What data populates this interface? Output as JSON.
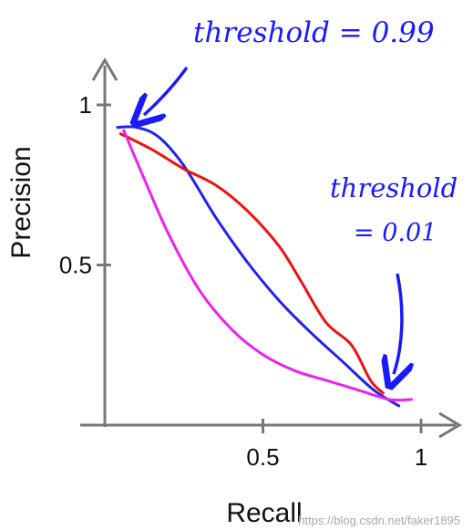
{
  "chart_data": {
    "type": "line",
    "title": "",
    "xlabel": "Recall",
    "ylabel": "Precision",
    "xlim": [
      0,
      1.1
    ],
    "ylim": [
      0,
      1.1
    ],
    "x_ticks": [
      {
        "value": 0.5,
        "label": "0.5"
      },
      {
        "value": 1,
        "label": "1"
      }
    ],
    "y_ticks": [
      {
        "value": 0.5,
        "label": "0.5"
      },
      {
        "value": 1,
        "label": "1"
      }
    ],
    "grid": false,
    "legend": "none",
    "series": [
      {
        "color": "#2222ee",
        "x": [
          0.04,
          0.1,
          0.17,
          0.25,
          0.35,
          0.45,
          0.55,
          0.65,
          0.75,
          0.85,
          0.93
        ],
        "y": [
          0.93,
          0.93,
          0.9,
          0.81,
          0.65,
          0.51,
          0.39,
          0.29,
          0.2,
          0.11,
          0.06
        ]
      },
      {
        "color": "#ee1111",
        "x": [
          0.05,
          0.15,
          0.25,
          0.35,
          0.45,
          0.55,
          0.62,
          0.7,
          0.78,
          0.84,
          0.88
        ],
        "y": [
          0.91,
          0.86,
          0.8,
          0.75,
          0.67,
          0.56,
          0.45,
          0.32,
          0.25,
          0.14,
          0.1
        ]
      },
      {
        "color": "#ee22ee",
        "x": [
          0.06,
          0.12,
          0.2,
          0.3,
          0.4,
          0.5,
          0.6,
          0.7,
          0.8,
          0.9,
          0.97
        ],
        "y": [
          0.92,
          0.78,
          0.6,
          0.42,
          0.3,
          0.22,
          0.17,
          0.14,
          0.11,
          0.08,
          0.08
        ]
      }
    ],
    "annotations": [
      {
        "text": "threshold = 0.99",
        "x": 0.04,
        "y": 0.93
      },
      {
        "text": "threshold",
        "x": 0.9,
        "y": 0.08
      },
      {
        "text": "= 0.01",
        "x": 0.9,
        "y": 0.08
      }
    ]
  },
  "watermark": "https://blog.csdn.net/faker1895"
}
